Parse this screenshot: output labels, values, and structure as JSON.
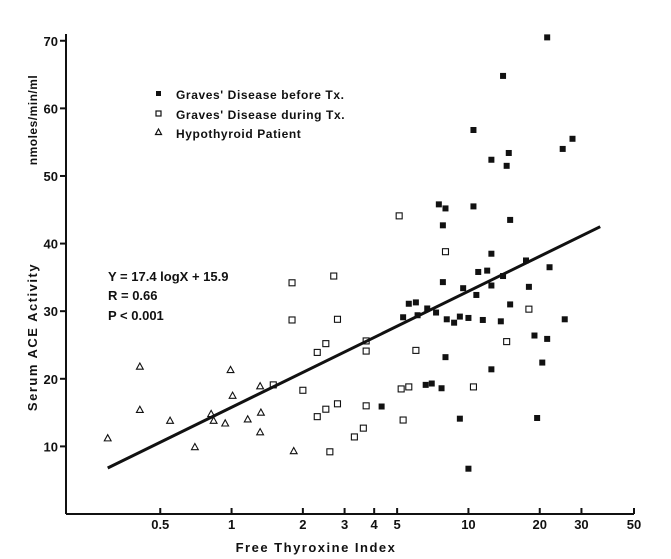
{
  "chart_data": {
    "type": "scatter",
    "title": "",
    "xlabel": "Free Thyroxine Index",
    "ylabel": "Serum ACE Activity",
    "yunit": "nmoles/min/ml",
    "xscale": "log",
    "xlim": [
      0.2,
      50
    ],
    "ylim": [
      0,
      71
    ],
    "xticks": [
      {
        "value": 0.5,
        "label": "0.5"
      },
      {
        "value": 1,
        "label": "1"
      },
      {
        "value": 2,
        "label": "2"
      },
      {
        "value": 3,
        "label": "3"
      },
      {
        "value": 4,
        "label": "4"
      },
      {
        "value": 5,
        "label": "5"
      },
      {
        "value": 10,
        "label": "10"
      },
      {
        "value": 20,
        "label": "20"
      },
      {
        "value": 30,
        "label": "30"
      },
      {
        "value": 50,
        "label": "50"
      }
    ],
    "yticks": [
      {
        "value": 10,
        "label": "10"
      },
      {
        "value": 20,
        "label": "20"
      },
      {
        "value": 30,
        "label": "30"
      },
      {
        "value": 40,
        "label": "40"
      },
      {
        "value": 50,
        "label": "50"
      },
      {
        "value": 60,
        "label": "60"
      },
      {
        "value": 70,
        "label": "70"
      }
    ],
    "legend_position": "top-left",
    "grid": false,
    "series": [
      {
        "name": "Graves' Disease before Tx.",
        "marker": "filled-square",
        "points": [
          [
            21.5,
            70.5
          ],
          [
            14.0,
            64.8
          ],
          [
            10.5,
            56.8
          ],
          [
            12.5,
            52.4
          ],
          [
            14.5,
            51.5
          ],
          [
            14.8,
            53.4
          ],
          [
            25.0,
            54.0
          ],
          [
            27.5,
            55.5
          ],
          [
            7.5,
            45.8
          ],
          [
            8.0,
            45.2
          ],
          [
            10.5,
            45.5
          ],
          [
            15.0,
            43.5
          ],
          [
            7.8,
            42.7
          ],
          [
            12.5,
            38.5
          ],
          [
            17.5,
            37.5
          ],
          [
            22.0,
            36.5
          ],
          [
            11.0,
            35.8
          ],
          [
            12.0,
            36.0
          ],
          [
            14.0,
            35.2
          ],
          [
            7.8,
            34.3
          ],
          [
            9.5,
            33.4
          ],
          [
            12.5,
            33.8
          ],
          [
            18.0,
            33.6
          ],
          [
            10.8,
            32.4
          ],
          [
            5.6,
            31.1
          ],
          [
            6.0,
            31.3
          ],
          [
            6.7,
            30.4
          ],
          [
            15.0,
            31.0
          ],
          [
            5.3,
            29.1
          ],
          [
            6.1,
            29.4
          ],
          [
            7.3,
            29.8
          ],
          [
            8.1,
            28.8
          ],
          [
            8.7,
            28.3
          ],
          [
            9.2,
            29.2
          ],
          [
            10.0,
            29.0
          ],
          [
            11.5,
            28.7
          ],
          [
            13.7,
            28.5
          ],
          [
            25.5,
            28.8
          ],
          [
            19.0,
            26.4
          ],
          [
            21.5,
            25.9
          ],
          [
            8.0,
            23.2
          ],
          [
            12.5,
            21.4
          ],
          [
            20.5,
            22.4
          ],
          [
            6.6,
            19.1
          ],
          [
            7.0,
            19.3
          ],
          [
            7.7,
            18.6
          ],
          [
            4.3,
            15.9
          ],
          [
            9.2,
            14.1
          ],
          [
            19.5,
            14.2
          ],
          [
            10.0,
            6.7
          ]
        ]
      },
      {
        "name": "Graves' Disease during Tx.",
        "marker": "open-square",
        "points": [
          [
            5.1,
            44.1
          ],
          [
            8.0,
            38.8
          ],
          [
            2.7,
            35.2
          ],
          [
            1.8,
            34.2
          ],
          [
            1.8,
            28.7
          ],
          [
            2.8,
            28.8
          ],
          [
            2.5,
            25.2
          ],
          [
            3.7,
            25.6
          ],
          [
            2.3,
            23.9
          ],
          [
            3.7,
            24.1
          ],
          [
            6.0,
            24.2
          ],
          [
            14.5,
            25.5
          ],
          [
            18.0,
            30.3
          ],
          [
            2.0,
            18.3
          ],
          [
            1.5,
            19.1
          ],
          [
            5.2,
            18.5
          ],
          [
            5.6,
            18.8
          ],
          [
            10.5,
            18.8
          ],
          [
            2.5,
            15.5
          ],
          [
            2.8,
            16.3
          ],
          [
            3.7,
            16.0
          ],
          [
            2.3,
            14.4
          ],
          [
            3.3,
            11.4
          ],
          [
            3.6,
            12.7
          ],
          [
            5.3,
            13.9
          ],
          [
            2.6,
            9.2
          ]
        ]
      },
      {
        "name": "Hypothyroid Patient",
        "marker": "open-triangle",
        "points": [
          [
            0.41,
            21.8
          ],
          [
            0.99,
            21.3
          ],
          [
            0.41,
            15.4
          ],
          [
            0.55,
            13.8
          ],
          [
            0.7,
            9.9
          ],
          [
            0.82,
            14.8
          ],
          [
            0.84,
            13.8
          ],
          [
            0.94,
            13.4
          ],
          [
            1.01,
            17.5
          ],
          [
            1.17,
            14.0
          ],
          [
            1.32,
            18.9
          ],
          [
            1.33,
            15.0
          ],
          [
            1.32,
            12.1
          ],
          [
            1.83,
            9.3
          ],
          [
            0.3,
            11.2
          ]
        ]
      }
    ],
    "regression_line": {
      "x": [
        0.3,
        36
      ],
      "y": [
        6.8,
        42.5
      ]
    },
    "annotation": {
      "lines": [
        "Y = 17.4 logX + 15.9",
        "R = 0.66",
        "P < 0.001"
      ]
    }
  }
}
